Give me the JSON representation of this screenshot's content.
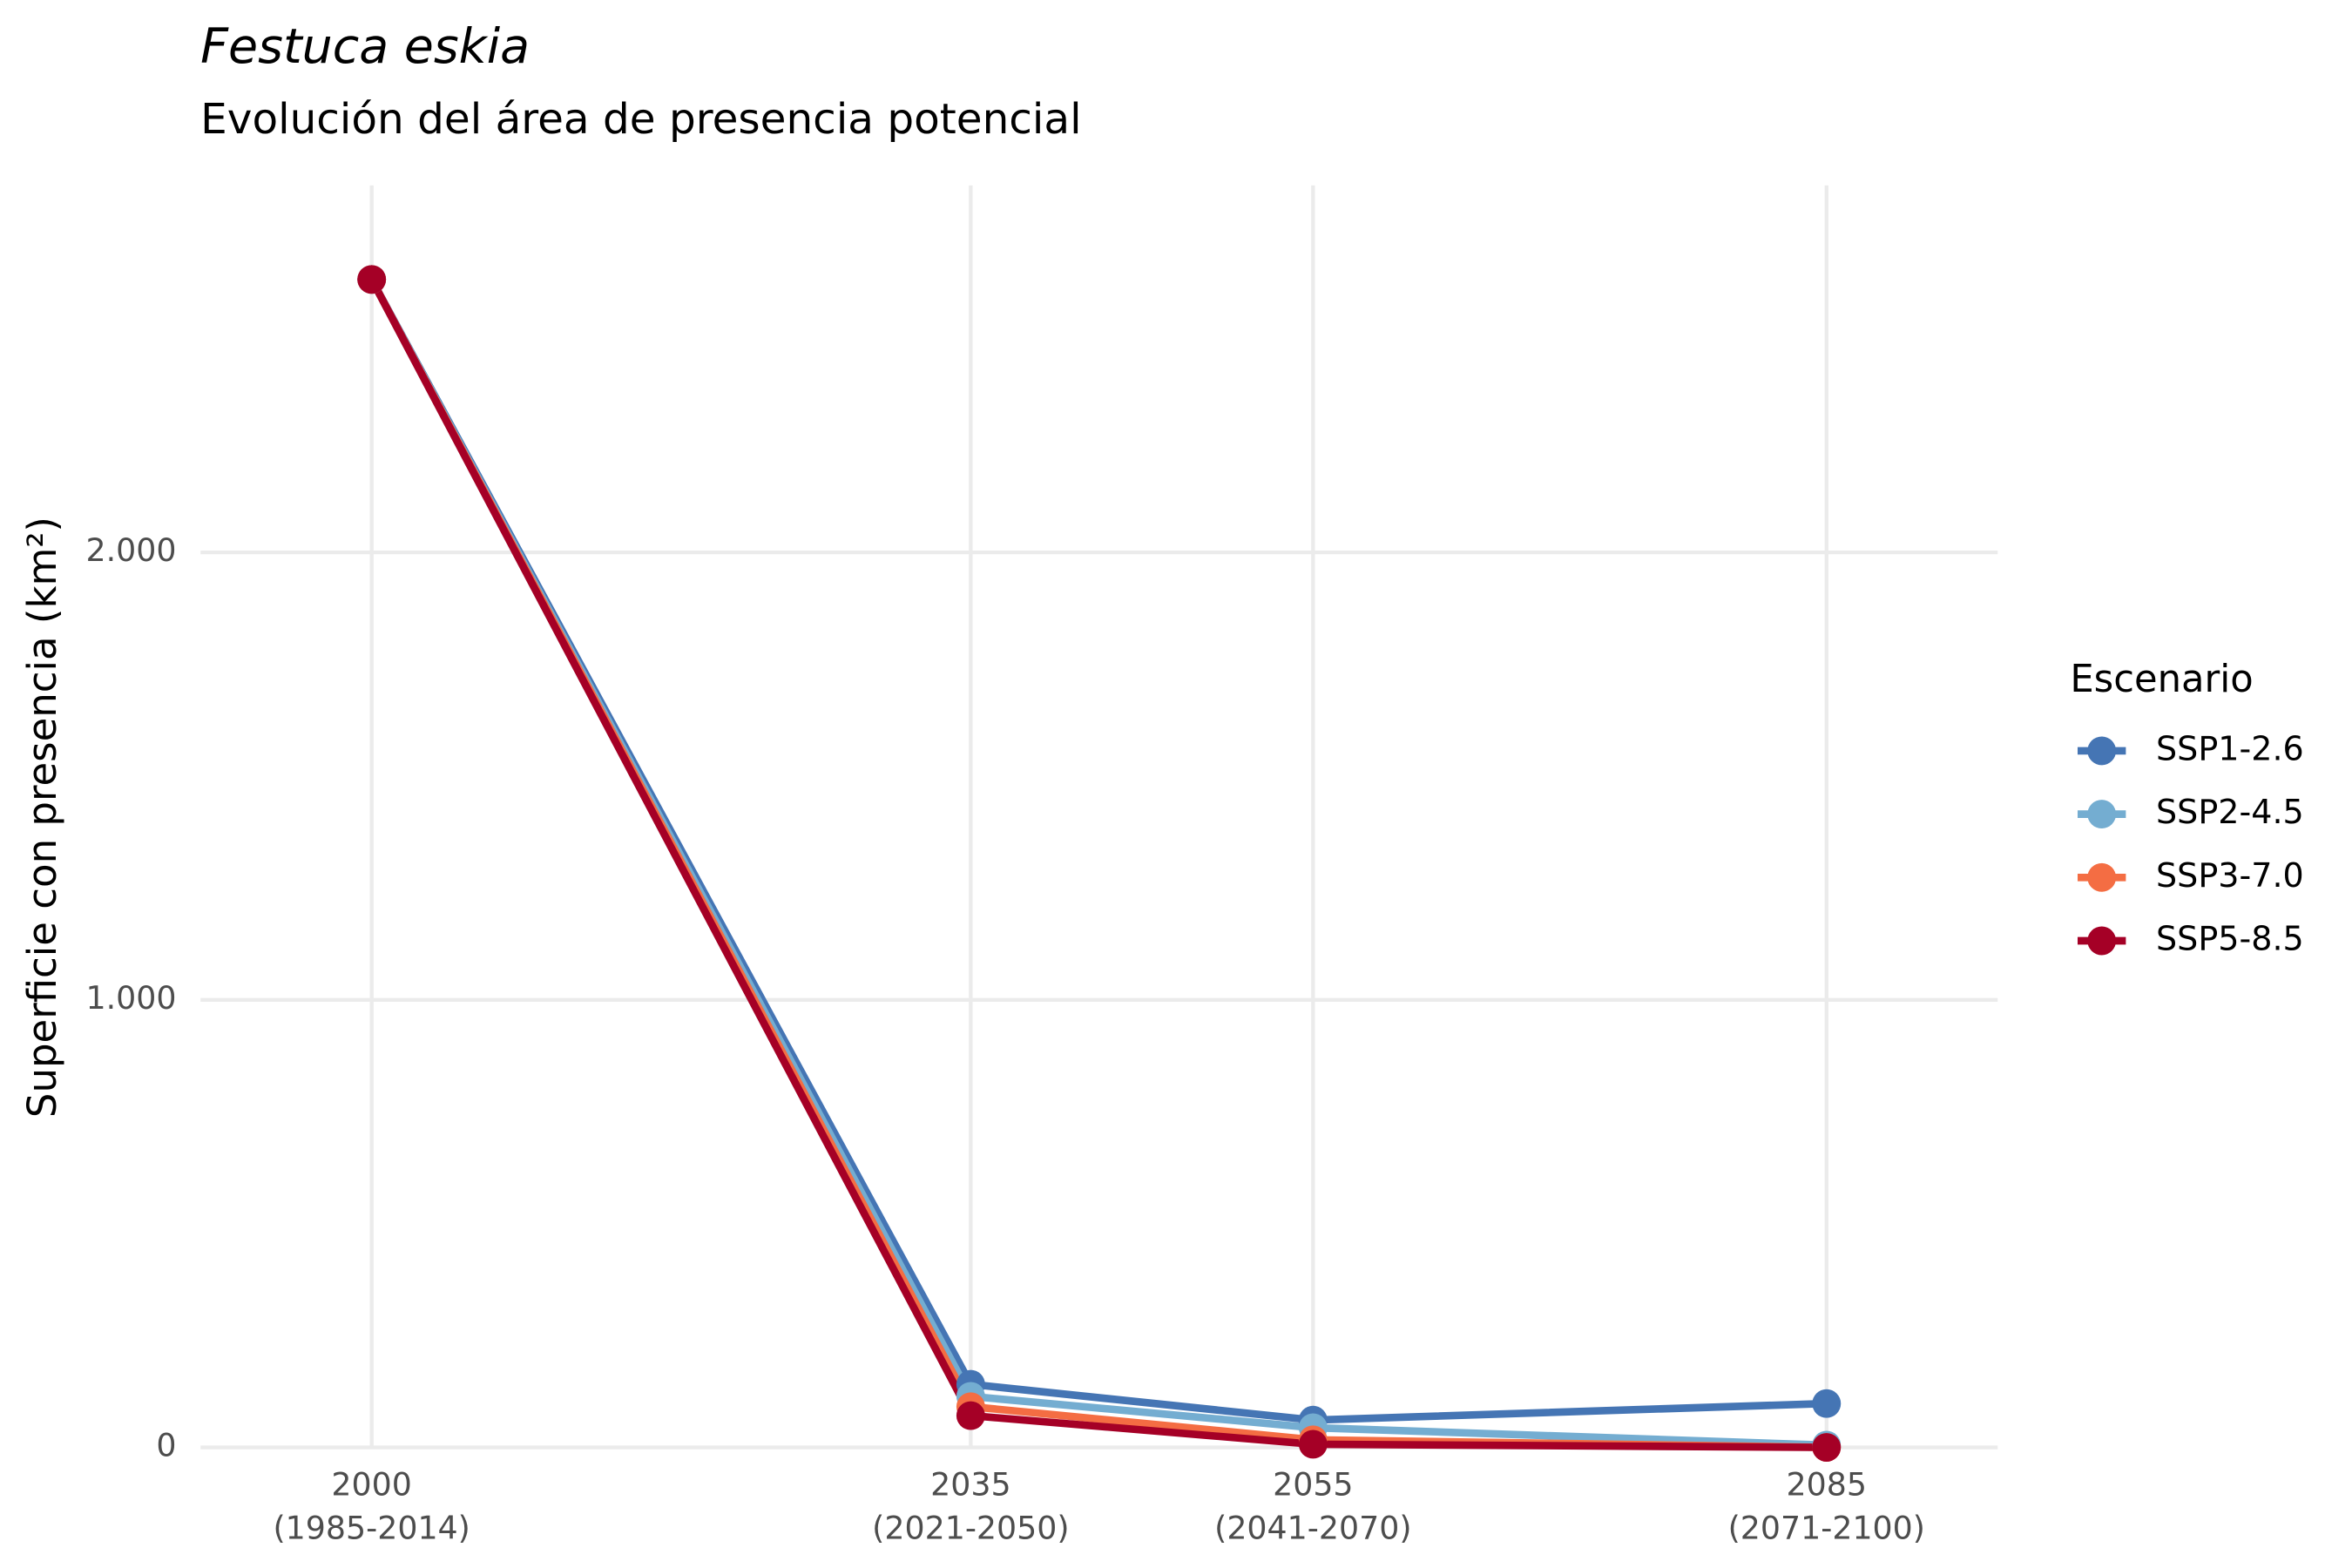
{
  "chart_data": {
    "type": "line",
    "title": "Festuca eskia",
    "subtitle": "Evolución del área de presencia potencial",
    "y_label": "Superficie con presencia (km²)",
    "legend_title": "Escenario",
    "legend": "right",
    "grid": true,
    "x": [
      2000,
      2035,
      2055,
      2085
    ],
    "xlim": [
      1990,
      2095
    ],
    "xticks": [
      {
        "value": 2000,
        "label": "2000\n(1985-2014)"
      },
      {
        "value": 2035,
        "label": "2035\n(2021-2050)"
      },
      {
        "value": 2055,
        "label": "2055\n(2041-2070)"
      },
      {
        "value": 2085,
        "label": "2085\n(2071-2100)"
      }
    ],
    "ylim": [
      0,
      2820
    ],
    "yticks": [
      0,
      {
        "value": 1000,
        "label": "1.000"
      },
      {
        "value": 2000,
        "label": "2.000"
      }
    ],
    "series": [
      {
        "name": "SSP1-2.6",
        "color": "#4575b4",
        "values": [
          2610,
          141,
          61,
          98
        ]
      },
      {
        "name": "SSP2-4.5",
        "color": "#74add1",
        "values": [
          2610,
          114,
          44,
          5
        ]
      },
      {
        "name": "SSP3-7.0",
        "color": "#f46d43",
        "values": [
          2610,
          91,
          17,
          0
        ]
      },
      {
        "name": "SSP5-8.5",
        "color": "#a50026",
        "values": [
          2610,
          71,
          7,
          0
        ]
      }
    ]
  }
}
